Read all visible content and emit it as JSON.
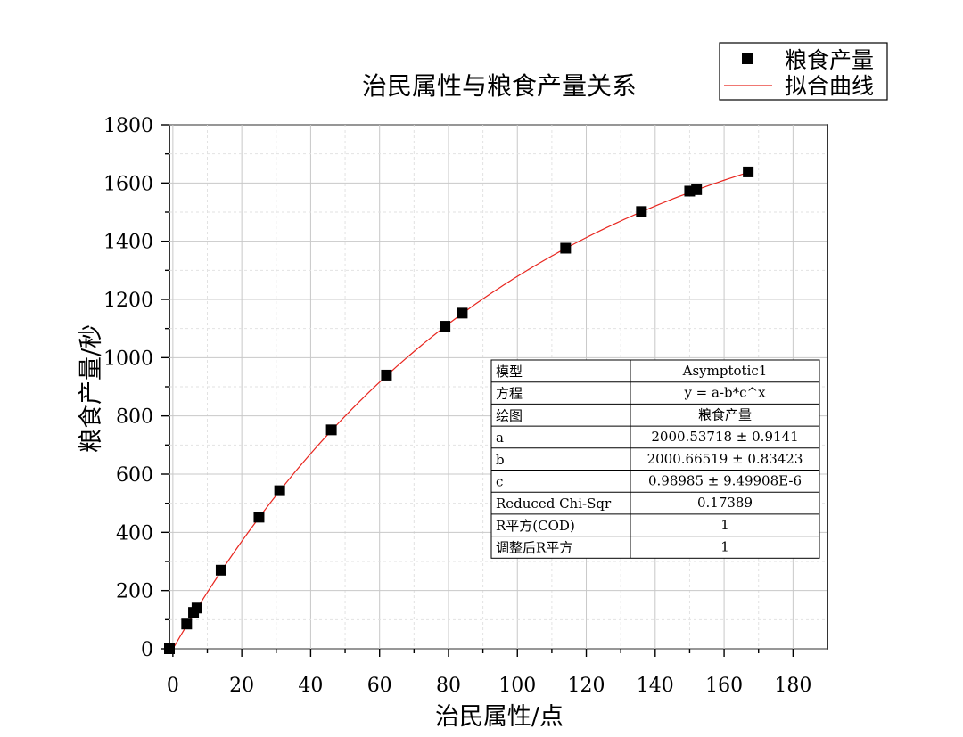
{
  "chart_data": {
    "type": "scatter",
    "title": "治民属性与粮食产量关系",
    "xlabel": "治民属性/点",
    "ylabel": "粮食产量/秒",
    "xlim": [
      -1,
      190
    ],
    "ylim": [
      0,
      1800
    ],
    "x_ticks": [
      "0",
      "20",
      "40",
      "60",
      "80",
      "100",
      "120",
      "140",
      "160",
      "180"
    ],
    "y_ticks": [
      "0",
      "200",
      "400",
      "600",
      "800",
      "1000",
      "1200",
      "1400",
      "1600",
      "1800"
    ],
    "grid": true,
    "legend_position": "top-right",
    "legend": [
      {
        "label": "粮食产量",
        "marker": "square",
        "color": "#000000"
      },
      {
        "label": "拟合曲线",
        "marker": "line",
        "color": "#e8261f"
      }
    ],
    "series": [
      {
        "name": "粮食产量",
        "kind": "scatter",
        "color": "#000000",
        "points": [
          [
            -1,
            0
          ],
          [
            4,
            85
          ],
          [
            6,
            125
          ],
          [
            7,
            140
          ],
          [
            14,
            270
          ],
          [
            25,
            452
          ],
          [
            31,
            543
          ],
          [
            46,
            752
          ],
          [
            62,
            940
          ],
          [
            79,
            1108
          ],
          [
            84,
            1153
          ],
          [
            114,
            1376
          ],
          [
            136,
            1502
          ],
          [
            150,
            1572
          ],
          [
            152,
            1577
          ],
          [
            167,
            1638
          ]
        ]
      },
      {
        "name": "拟合曲线",
        "kind": "fit",
        "color": "#e8261f",
        "equation": "y = a-b*c^x",
        "params": {
          "a": 2000.53718,
          "b": 2000.66519,
          "c": 0.98985
        },
        "x_range": [
          -1,
          167
        ]
      }
    ],
    "fit_table": {
      "rows": [
        {
          "label": "模型",
          "value": "Asymptotic1"
        },
        {
          "label": "方程",
          "value": "y = a-b*c^x"
        },
        {
          "label": "绘图",
          "value": "粮食产量"
        },
        {
          "label": "a",
          "value": "2000.53718 ± 0.9141"
        },
        {
          "label": "b",
          "value": "2000.66519 ± 0.83423"
        },
        {
          "label": "c",
          "value": "0.98985 ± 9.49908E-6"
        },
        {
          "label": "Reduced Chi-Sqr",
          "value": "0.17389"
        },
        {
          "label": "R平方(COD)",
          "value": "1"
        },
        {
          "label": "调整后R平方",
          "value": "1"
        }
      ]
    }
  }
}
